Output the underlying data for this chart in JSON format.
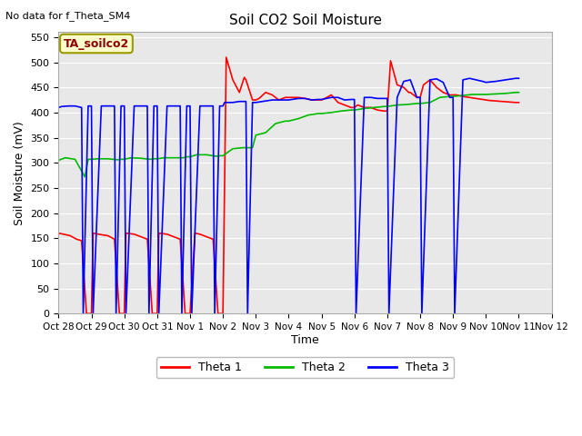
{
  "title": "Soil CO2 Soil Moisture",
  "ylabel": "Soil Moisture (mV)",
  "xlabel": "Time",
  "no_data_text": "No data for f_Theta_SM4",
  "legend_box_text": "TA_soilco2",
  "ylim": [
    0,
    560
  ],
  "yticks": [
    0,
    50,
    100,
    150,
    200,
    250,
    300,
    350,
    400,
    450,
    500,
    550
  ],
  "xtick_labels": [
    "Oct 28",
    "Oct 29",
    "Oct 30",
    "Oct 31",
    "Nov 1",
    "Nov 2",
    "Nov 3",
    "Nov 4",
    "Nov 5",
    "Nov 6",
    "Nov 7",
    "Nov 8",
    "Nov 9",
    "Nov 10",
    "Nov 11",
    "Nov 12"
  ],
  "fig_bg": "#ffffff",
  "plot_bg": "#e8e8e8",
  "line_colors": {
    "theta1": "#ff0000",
    "theta2": "#00bb00",
    "theta3": "#0000ff"
  },
  "legend_labels": [
    "Theta 1",
    "Theta 2",
    "Theta 3"
  ],
  "theta1_x": [
    0.0,
    0.15,
    0.35,
    0.55,
    0.7,
    0.85,
    1.0,
    1.05,
    1.3,
    1.5,
    1.7,
    1.85,
    2.0,
    2.05,
    2.3,
    2.5,
    2.7,
    2.85,
    3.0,
    3.05,
    3.3,
    3.5,
    3.7,
    3.85,
    4.0,
    4.15,
    4.3,
    4.5,
    4.7,
    4.85,
    5.0,
    5.1,
    5.3,
    5.5,
    5.65,
    5.7,
    5.9,
    6.0,
    6.1,
    6.3,
    6.5,
    6.7,
    6.9,
    7.0,
    7.1,
    7.3,
    7.5,
    7.7,
    7.9,
    8.0,
    8.1,
    8.3,
    8.5,
    8.7,
    8.9,
    9.0,
    9.1,
    9.3,
    9.5,
    9.7,
    9.9,
    10.0,
    10.1,
    10.3,
    10.5,
    10.65,
    10.7,
    10.9,
    11.0,
    11.1,
    11.3,
    11.5,
    11.7,
    11.9,
    12.0,
    12.1,
    12.3,
    12.5,
    12.7,
    12.9,
    13.0,
    13.1,
    13.3,
    13.5,
    13.7,
    13.9,
    14.0
  ],
  "theta1_y": [
    160,
    158,
    155,
    148,
    145,
    0,
    0,
    160,
    157,
    155,
    148,
    0,
    0,
    160,
    158,
    153,
    148,
    0,
    0,
    160,
    158,
    153,
    148,
    0,
    0,
    160,
    158,
    153,
    148,
    0,
    0,
    510,
    465,
    440,
    470,
    465,
    425,
    425,
    428,
    440,
    435,
    425,
    430,
    430,
    430,
    430,
    428,
    425,
    425,
    425,
    428,
    435,
    420,
    415,
    410,
    410,
    415,
    410,
    410,
    405,
    403,
    403,
    503,
    455,
    450,
    440,
    440,
    430,
    430,
    455,
    465,
    450,
    440,
    435,
    435,
    435,
    432,
    430,
    428,
    426,
    425,
    424,
    423,
    422,
    421,
    420,
    420
  ],
  "theta2_x": [
    0.0,
    0.2,
    0.5,
    0.8,
    0.9,
    1.0,
    1.2,
    1.5,
    1.8,
    1.9,
    2.0,
    2.2,
    2.5,
    2.8,
    2.9,
    3.0,
    3.2,
    3.5,
    3.8,
    3.9,
    4.0,
    4.2,
    4.5,
    4.8,
    4.9,
    5.0,
    5.3,
    5.6,
    5.9,
    6.0,
    6.3,
    6.6,
    6.9,
    7.0,
    7.3,
    7.6,
    7.9,
    8.0,
    8.3,
    8.6,
    8.9,
    9.0,
    9.3,
    9.6,
    9.9,
    10.0,
    10.3,
    10.6,
    10.9,
    11.0,
    11.3,
    11.6,
    11.9,
    12.0,
    12.3,
    12.6,
    12.9,
    13.0,
    13.3,
    13.6,
    13.9,
    14.0
  ],
  "theta2_y": [
    305,
    310,
    307,
    272,
    307,
    307,
    308,
    308,
    306,
    307,
    307,
    310,
    309,
    307,
    308,
    308,
    310,
    310,
    310,
    312,
    312,
    316,
    316,
    313,
    314,
    314,
    328,
    330,
    330,
    355,
    360,
    378,
    383,
    383,
    388,
    395,
    398,
    398,
    400,
    403,
    405,
    405,
    408,
    410,
    412,
    412,
    415,
    416,
    418,
    418,
    420,
    430,
    432,
    432,
    434,
    436,
    436,
    436,
    437,
    438,
    440,
    440
  ],
  "theta3_x": [
    0.0,
    0.1,
    0.3,
    0.5,
    0.7,
    0.75,
    0.9,
    1.0,
    1.05,
    1.3,
    1.5,
    1.7,
    1.75,
    1.9,
    2.0,
    2.05,
    2.3,
    2.5,
    2.7,
    2.75,
    2.9,
    3.0,
    3.05,
    3.3,
    3.5,
    3.7,
    3.75,
    3.9,
    4.0,
    4.05,
    4.3,
    4.5,
    4.7,
    4.75,
    4.9,
    5.0,
    5.05,
    5.3,
    5.5,
    5.7,
    5.75,
    5.9,
    6.0,
    6.3,
    6.5,
    6.7,
    6.9,
    7.0,
    7.3,
    7.5,
    7.7,
    7.9,
    8.0,
    8.3,
    8.5,
    8.7,
    8.9,
    9.0,
    9.05,
    9.3,
    9.5,
    9.7,
    9.9,
    10.0,
    10.05,
    10.3,
    10.5,
    10.7,
    10.9,
    11.0,
    11.05,
    11.3,
    11.5,
    11.7,
    11.9,
    12.0,
    12.05,
    12.3,
    12.5,
    12.7,
    12.9,
    13.0,
    13.3,
    13.5,
    13.7,
    13.9,
    14.0
  ],
  "theta3_y": [
    410,
    412,
    413,
    413,
    410,
    0,
    413,
    413,
    0,
    413,
    413,
    413,
    0,
    413,
    413,
    0,
    413,
    413,
    413,
    0,
    413,
    413,
    0,
    413,
    413,
    413,
    0,
    413,
    413,
    0,
    413,
    413,
    413,
    0,
    413,
    413,
    420,
    420,
    422,
    422,
    0,
    420,
    420,
    423,
    425,
    425,
    425,
    425,
    428,
    428,
    425,
    426,
    426,
    430,
    430,
    425,
    426,
    426,
    0,
    430,
    430,
    428,
    428,
    428,
    0,
    430,
    462,
    465,
    430,
    430,
    0,
    465,
    467,
    460,
    430,
    430,
    0,
    465,
    468,
    465,
    462,
    460,
    462,
    464,
    466,
    468,
    468
  ]
}
